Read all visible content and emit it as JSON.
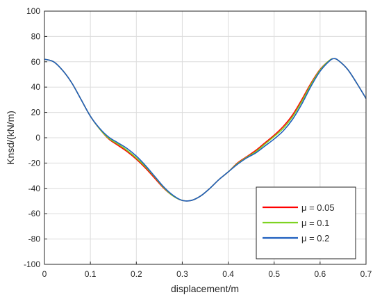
{
  "chart_data": {
    "type": "line",
    "title": "",
    "xlabel": "displacement/m",
    "ylabel": "Knsd/(kN/m)",
    "xlim": [
      0,
      0.7
    ],
    "ylim": [
      -100,
      100
    ],
    "xticks": [
      "0",
      "0.1",
      "0.2",
      "0.3",
      "0.4",
      "0.5",
      "0.6",
      "0.7"
    ],
    "yticks": [
      "100",
      "80",
      "60",
      "40",
      "20",
      "0",
      "-20",
      "-40",
      "-60",
      "-80",
      "-100"
    ],
    "grid": true,
    "legend_position": "bottom-right",
    "series": [
      {
        "name": "μ = 0.05",
        "color": "#ff0000",
        "x": [
          0,
          0.02,
          0.04,
          0.06,
          0.08,
          0.1,
          0.12,
          0.14,
          0.16,
          0.18,
          0.2,
          0.22,
          0.24,
          0.26,
          0.28,
          0.3,
          0.32,
          0.34,
          0.36,
          0.38,
          0.4,
          0.42,
          0.44,
          0.46,
          0.48,
          0.5,
          0.52,
          0.54,
          0.56,
          0.58,
          0.6,
          0.62,
          0.63,
          0.64,
          0.66,
          0.68,
          0.7
        ],
        "y": [
          62,
          60,
          53,
          43,
          30,
          17,
          7,
          -1,
          -6,
          -11,
          -17,
          -24,
          -32,
          -40,
          -46,
          -49.5,
          -49.5,
          -46,
          -40,
          -33,
          -27,
          -20,
          -15,
          -10,
          -4,
          2,
          9,
          18,
          30,
          43,
          54,
          61,
          62.5,
          61,
          54,
          43,
          31
        ]
      },
      {
        "name": "μ = 0.1",
        "color": "#7ed321",
        "x": [
          0,
          0.02,
          0.04,
          0.06,
          0.08,
          0.1,
          0.12,
          0.14,
          0.16,
          0.18,
          0.2,
          0.22,
          0.24,
          0.26,
          0.28,
          0.3,
          0.32,
          0.34,
          0.36,
          0.38,
          0.4,
          0.42,
          0.44,
          0.46,
          0.48,
          0.5,
          0.52,
          0.54,
          0.56,
          0.58,
          0.6,
          0.62,
          0.63,
          0.64,
          0.66,
          0.68,
          0.7
        ],
        "y": [
          62,
          60,
          53,
          43,
          30,
          17,
          7,
          -0.5,
          -5,
          -10,
          -16,
          -23,
          -31,
          -39.5,
          -46,
          -49.5,
          -49.5,
          -46,
          -40,
          -33,
          -27,
          -20.5,
          -15.5,
          -11,
          -5,
          1,
          7.5,
          16.5,
          28.5,
          42,
          53.5,
          61,
          62.5,
          61,
          54,
          43,
          31
        ]
      },
      {
        "name": "μ = 0.2",
        "color": "#1f5fbf",
        "x": [
          0,
          0.02,
          0.04,
          0.06,
          0.08,
          0.1,
          0.12,
          0.14,
          0.16,
          0.18,
          0.2,
          0.22,
          0.24,
          0.26,
          0.28,
          0.3,
          0.32,
          0.34,
          0.36,
          0.38,
          0.4,
          0.42,
          0.44,
          0.46,
          0.48,
          0.5,
          0.52,
          0.54,
          0.56,
          0.58,
          0.6,
          0.62,
          0.63,
          0.64,
          0.66,
          0.68,
          0.7
        ],
        "y": [
          62,
          60,
          53,
          43,
          30,
          17,
          7.5,
          0.5,
          -4,
          -8.5,
          -14.5,
          -22,
          -30.5,
          -39,
          -45.5,
          -49.5,
          -49.5,
          -46,
          -40,
          -33,
          -27,
          -21,
          -16,
          -12,
          -6.5,
          -1,
          5.5,
          14.5,
          26.5,
          40.5,
          52.5,
          60.5,
          62.5,
          61,
          54,
          43,
          31
        ]
      }
    ]
  }
}
